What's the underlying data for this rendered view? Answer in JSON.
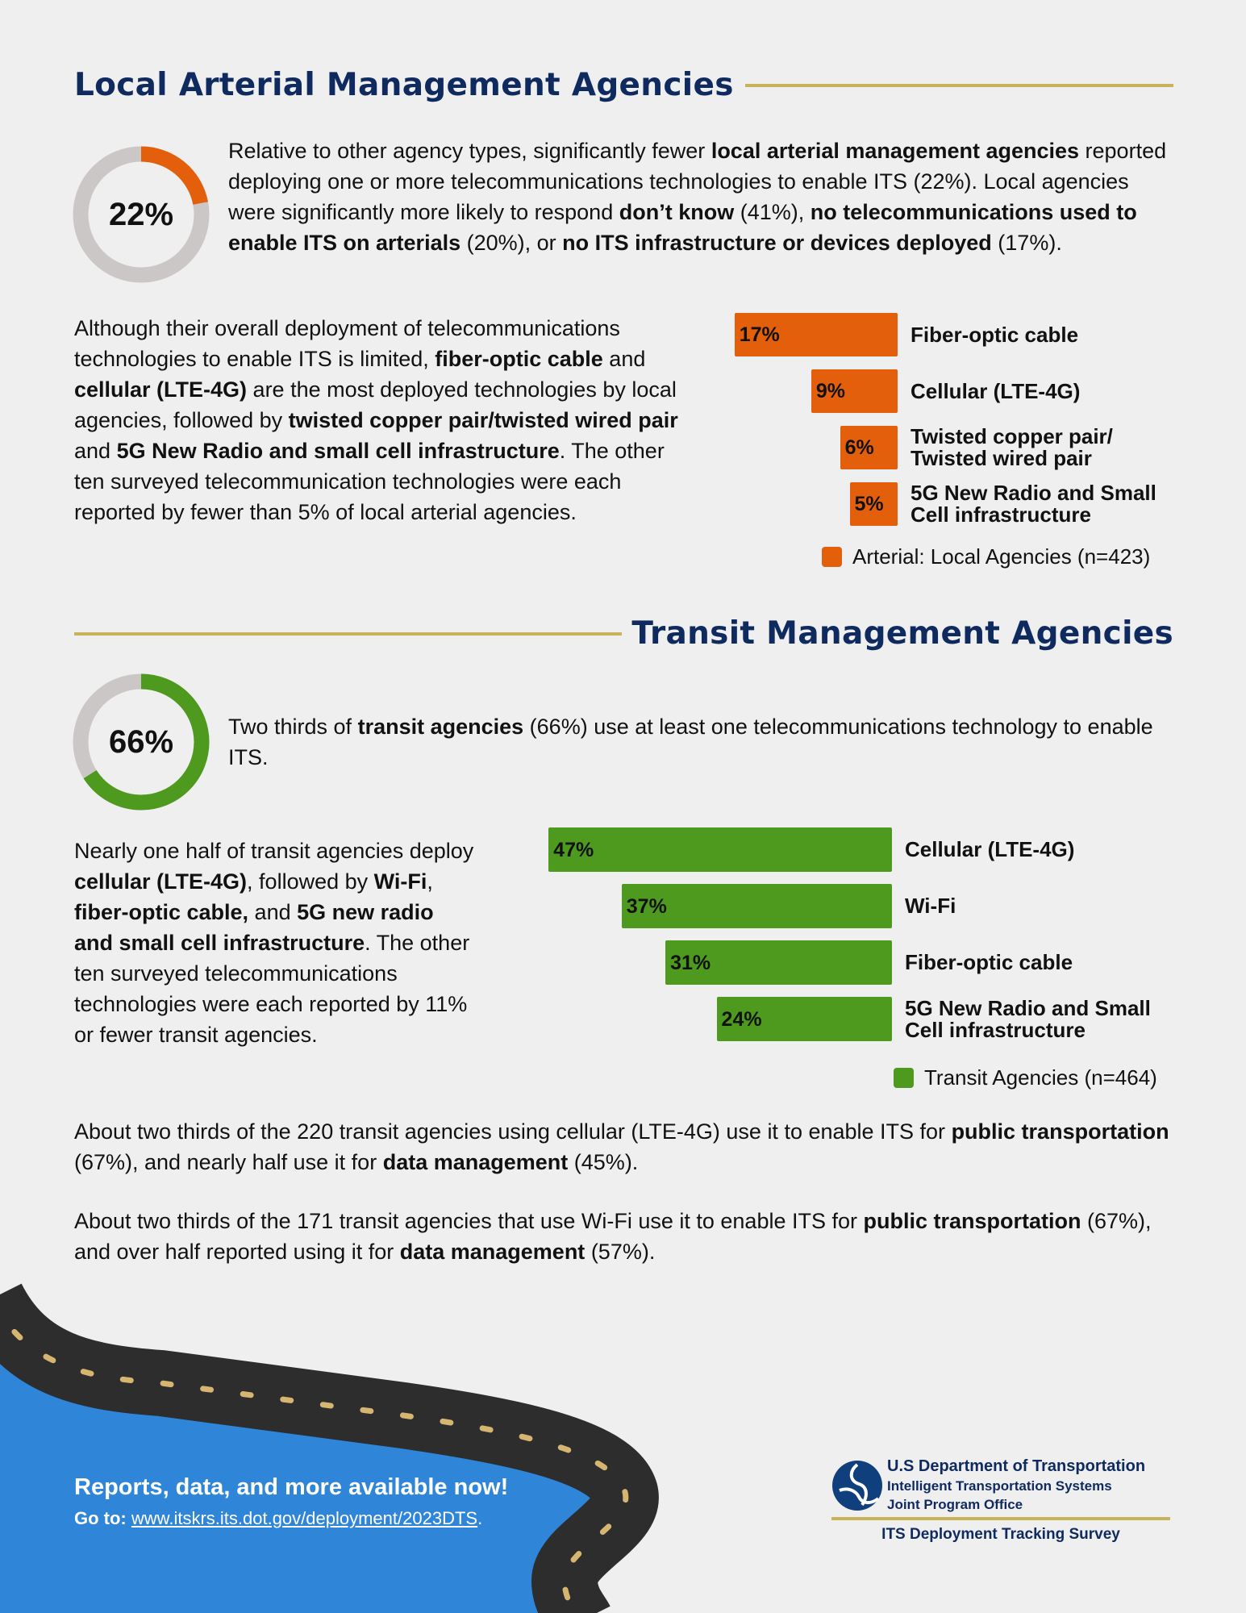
{
  "colors": {
    "navy": "#0f2a5f",
    "gold": "#c8b35a",
    "orange": "#e35f0c",
    "green": "#4e9a1e",
    "donut_track": "#ccc7c7",
    "footer_blue": "#2f86d8",
    "road": "#2d2d2d",
    "road_dash": "#d6b570"
  },
  "section1": {
    "title": "Local Arterial Management Agencies",
    "donut": {
      "label": "22%",
      "value": 22
    },
    "para1": [
      {
        "t": "Relative to other agency types, significantly fewer "
      },
      {
        "t": "local arterial management agencies",
        "b": true
      },
      {
        "t": " reported deploying one or more telecommunications technologies to enable ITS (22%). Local agencies were significantly more likely to respond "
      },
      {
        "t": "don’t know",
        "b": true
      },
      {
        "t": " (41%), "
      },
      {
        "t": "no telecommunications used to enable ITS on arterials",
        "b": true
      },
      {
        "t": " (20%), or "
      },
      {
        "t": "no ITS infrastructure or devices deployed",
        "b": true
      },
      {
        "t": " (17%)."
      }
    ],
    "para2": [
      {
        "t": "Although their overall deployment of telecommunications technologies to enable ITS is limited, "
      },
      {
        "t": "fiber-optic cable",
        "b": true
      },
      {
        "t": " and "
      },
      {
        "t": "cellular (LTE-4G)",
        "b": true
      },
      {
        "t": " are the most deployed technologies by local agencies, followed by "
      },
      {
        "t": "twisted copper pair/twisted wired pair",
        "b": true
      },
      {
        "t": " and "
      },
      {
        "t": "5G New Radio and small cell infrastructure",
        "b": true
      },
      {
        "t": ". The other ten surveyed telecommunication technologies were each reported by fewer than 5% of local arterial agencies."
      }
    ]
  },
  "section2": {
    "title": "Transit Management Agencies",
    "donut": {
      "label": "66%",
      "value": 66
    },
    "para3": [
      {
        "t": "Two thirds of "
      },
      {
        "t": "transit agencies",
        "b": true
      },
      {
        "t": " (66%) use at least one telecommunications technology to enable ITS."
      }
    ],
    "para4": [
      {
        "t": "Nearly one half of transit agencies deploy "
      },
      {
        "t": "cellular (LTE-4G)",
        "b": true
      },
      {
        "t": ", followed by "
      },
      {
        "t": "Wi-Fi",
        "b": true
      },
      {
        "t": ", "
      },
      {
        "t": "fiber-optic cable,",
        "b": true
      },
      {
        "t": " and "
      },
      {
        "t": "5G new radio and small cell infrastructure",
        "b": true
      },
      {
        "t": ". The other ten surveyed telecommunications technologies were each reported by 11% or fewer transit agencies."
      }
    ],
    "para5": [
      {
        "t": "About two thirds of the 220 transit agencies using cellular (LTE-4G) use it to enable ITS for "
      },
      {
        "t": "public transportation",
        "b": true
      },
      {
        "t": " (67%), and nearly half use it for "
      },
      {
        "t": "data management",
        "b": true
      },
      {
        "t": " (45%)."
      }
    ],
    "para6": [
      {
        "t": "About two thirds of the 171 transit agencies that use Wi-Fi use it to enable ITS for "
      },
      {
        "t": "public transportation",
        "b": true
      },
      {
        "t": " (67%), and over half reported using it for "
      },
      {
        "t": "data management",
        "b": true
      },
      {
        "t": " (57%)."
      }
    ]
  },
  "chart_data": [
    {
      "type": "bar",
      "orientation": "horizontal",
      "categories": [
        "Fiber-optic cable",
        "Cellular (LTE-4G)",
        "Twisted copper pair/\nTwisted wired pair",
        "5G New Radio and Small\nCell infrastructure"
      ],
      "series": [
        {
          "name": "Arterial: Local Agencies (n=423)",
          "values": [
            17,
            9,
            6,
            5
          ],
          "labels": [
            "17%",
            "9%",
            "6%",
            "5%"
          ],
          "color": "#e35f0c"
        }
      ],
      "legend": "bottom-right",
      "grid": false
    },
    {
      "type": "bar",
      "orientation": "horizontal",
      "categories": [
        "Cellular (LTE-4G)",
        "Wi-Fi",
        "Fiber-optic cable",
        "5G New Radio and Small\nCell infrastructure"
      ],
      "series": [
        {
          "name": "Transit Agencies (n=464)",
          "values": [
            47,
            37,
            31,
            24
          ],
          "labels": [
            "47%",
            "37%",
            "31%",
            "24%"
          ],
          "color": "#4e9a1e"
        }
      ],
      "legend": "bottom-right",
      "grid": false
    }
  ],
  "footer": {
    "headline": "Reports, data, and more available now!",
    "goto_label": "Go to:",
    "link": "www.itskrs.its.dot.gov/deployment/2023DTS",
    "link_suffix": ".",
    "dot_line1": "U.S Department of Transportation",
    "dot_line2": "Intelligent Transportation Systems",
    "dot_line3": "Joint Program Office",
    "survey": "ITS Deployment Tracking Survey"
  }
}
